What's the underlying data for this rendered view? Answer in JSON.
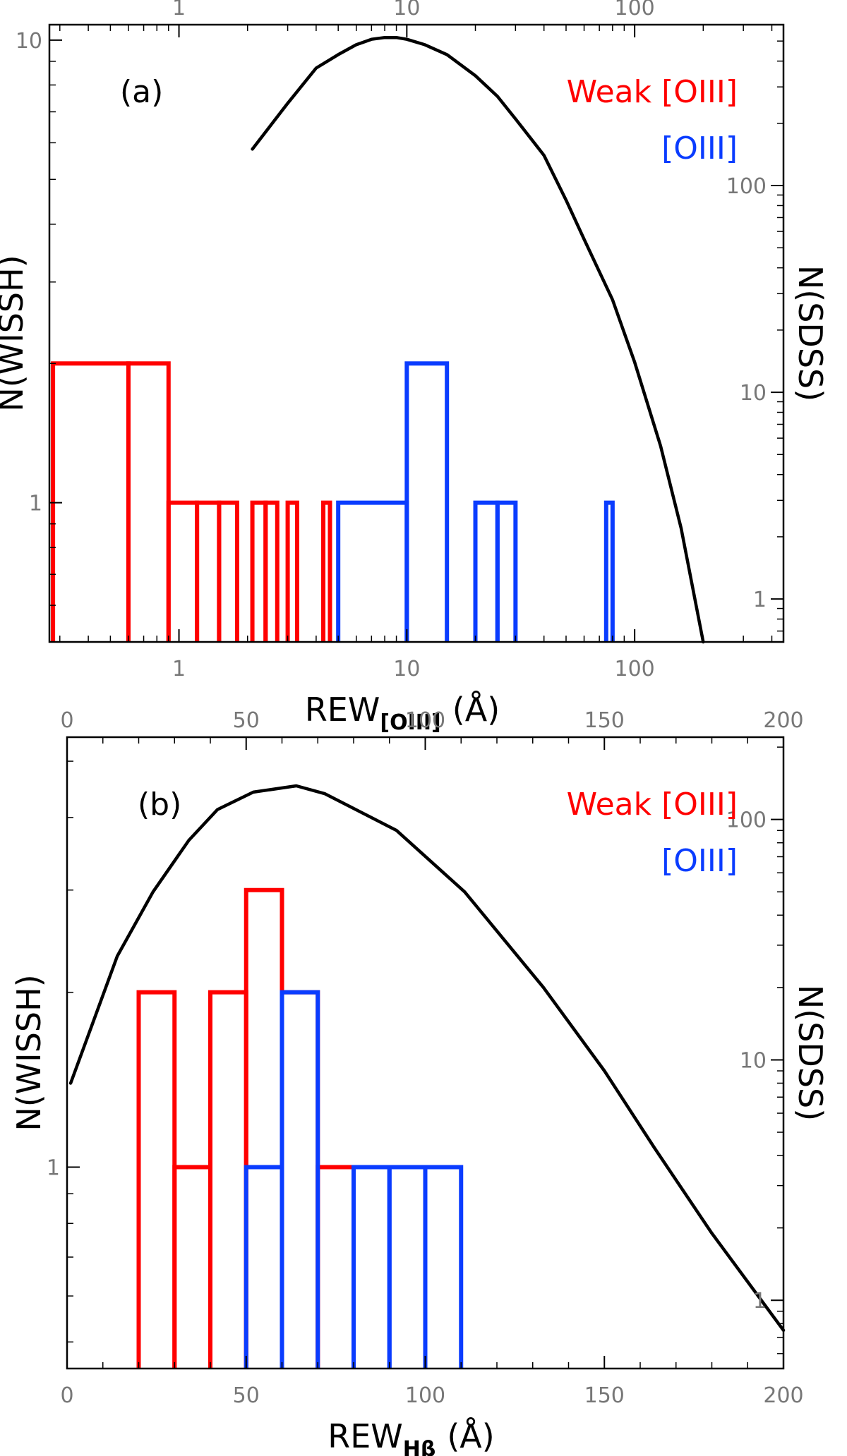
{
  "colors": {
    "weak": "#ff0000",
    "strong": "#0a3cff",
    "sdss": "#000000",
    "axis": "#000000",
    "tick_label": "#777777"
  },
  "chart_data": [
    {
      "panel_label": "(a)",
      "type": "histogram",
      "xscale": "log",
      "xlim": [
        0.27,
        450
      ],
      "x_ticks": [
        "1",
        "10",
        "100"
      ],
      "x_tick_values": [
        1,
        10,
        100
      ],
      "xlabel": "REW",
      "xlabel_sub": "[OIII]",
      "xlabel_unit": "(Å)",
      "ylabel_left": "N(WISSH)",
      "yscale_left": "log",
      "ylim_left": [
        0.5,
        10.8
      ],
      "y_ticks_left": [
        "1",
        "10"
      ],
      "y_tick_values_left": [
        1,
        10
      ],
      "ylabel_right": "N(SDSS)",
      "yscale_right": "log",
      "ylim_right": [
        0.62,
        600
      ],
      "y_ticks_right": [
        "1",
        "10",
        "100"
      ],
      "y_tick_values_right": [
        1,
        10,
        100
      ],
      "legend": [
        {
          "label": "Weak [OIII]",
          "color": "#ff0000"
        },
        {
          "label": "[OIII]",
          "color": "#0a3cff"
        }
      ],
      "series": [
        {
          "color": "#ff0000",
          "kind": "bars",
          "bars": [
            {
              "x0": 0.28,
              "x1": 0.6,
              "y": 2
            },
            {
              "x0": 0.6,
              "x1": 0.9,
              "y": 2
            },
            {
              "x0": 0.9,
              "x1": 1.2,
              "y": 1
            },
            {
              "x0": 1.2,
              "x1": 1.5,
              "y": 1
            },
            {
              "x0": 1.5,
              "x1": 1.8,
              "y": 1
            },
            {
              "x0": 2.1,
              "x1": 2.4,
              "y": 1
            },
            {
              "x0": 2.4,
              "x1": 2.7,
              "y": 1
            },
            {
              "x0": 3.0,
              "x1": 3.3,
              "y": 1
            },
            {
              "x0": 4.3,
              "x1": 4.6,
              "y": 1
            }
          ]
        },
        {
          "color": "#0a3cff",
          "kind": "bars",
          "bars": [
            {
              "x0": 5.0,
              "x1": 10.0,
              "y": 1
            },
            {
              "x0": 10.0,
              "x1": 15.0,
              "y": 2
            },
            {
              "x0": 20.0,
              "x1": 25.0,
              "y": 1
            },
            {
              "x0": 25.0,
              "x1": 30.0,
              "y": 1
            },
            {
              "x0": 75.0,
              "x1": 80.0,
              "y": 1
            }
          ]
        },
        {
          "color": "#000000",
          "kind": "line",
          "axis": "right",
          "x": [
            2.1,
            3.0,
            4.0,
            5.0,
            6.0,
            7.0,
            8.0,
            9.0,
            10.0,
            12.0,
            15.0,
            20.0,
            25.0,
            30.0,
            40.0,
            50.0,
            60.0,
            80.0,
            100.0,
            130.0,
            160.0,
            200.0
          ],
          "y": [
            150,
            250,
            370,
            430,
            480,
            510,
            520,
            520,
            510,
            480,
            430,
            340,
            270,
            210,
            140,
            85,
            55,
            28,
            14,
            5.5,
            2.2,
            0.62
          ]
        }
      ]
    },
    {
      "panel_label": "(b)",
      "type": "histogram",
      "xscale": "linear",
      "xlim": [
        0,
        200
      ],
      "x_ticks": [
        "0",
        "50",
        "100",
        "150",
        "200"
      ],
      "x_tick_values": [
        0,
        50,
        100,
        150,
        200
      ],
      "xlabel": "REW",
      "xlabel_sub": "Hβ",
      "xlabel_unit": "(Å)",
      "ylabel_left": "N(WISSH)",
      "yscale_left": "log",
      "ylim_left": [
        0.45,
        5.5
      ],
      "y_ticks_left": [
        "1"
      ],
      "y_tick_values_left": [
        1
      ],
      "ylabel_right": "N(SDSS)",
      "yscale_right": "log",
      "ylim_right": [
        0.52,
        220
      ],
      "y_ticks_right": [
        "1",
        "10",
        "100"
      ],
      "y_tick_values_right": [
        1,
        10,
        100
      ],
      "legend": [
        {
          "label": "Weak [OIII]",
          "color": "#ff0000"
        },
        {
          "label": "[OIII]",
          "color": "#0a3cff"
        }
      ],
      "series": [
        {
          "color": "#ff0000",
          "kind": "bars",
          "bars": [
            {
              "x0": 20,
              "x1": 30,
              "y": 2
            },
            {
              "x0": 30,
              "x1": 40,
              "y": 1
            },
            {
              "x0": 40,
              "x1": 50,
              "y": 2
            },
            {
              "x0": 50,
              "x1": 60,
              "y": 3
            },
            {
              "x0": 60,
              "x1": 70,
              "y": 2
            },
            {
              "x0": 70,
              "x1": 80,
              "y": 1
            }
          ]
        },
        {
          "color": "#0a3cff",
          "kind": "bars",
          "bars": [
            {
              "x0": 50,
              "x1": 60,
              "y": 1
            },
            {
              "x0": 60,
              "x1": 70,
              "y": 2
            },
            {
              "x0": 80,
              "x1": 90,
              "y": 1
            },
            {
              "x0": 90,
              "x1": 100,
              "y": 1
            },
            {
              "x0": 100,
              "x1": 110,
              "y": 1
            }
          ]
        },
        {
          "color": "#000000",
          "kind": "line",
          "axis": "right",
          "x": [
            1,
            7,
            14,
            24,
            34,
            42,
            52,
            64,
            72,
            92,
            111,
            133,
            150,
            164,
            180,
            200
          ],
          "y": [
            8,
            14,
            27,
            50,
            82,
            110,
            130,
            138,
            128,
            90,
            50,
            20,
            9,
            4.3,
            1.9,
            0.75
          ]
        }
      ]
    }
  ]
}
